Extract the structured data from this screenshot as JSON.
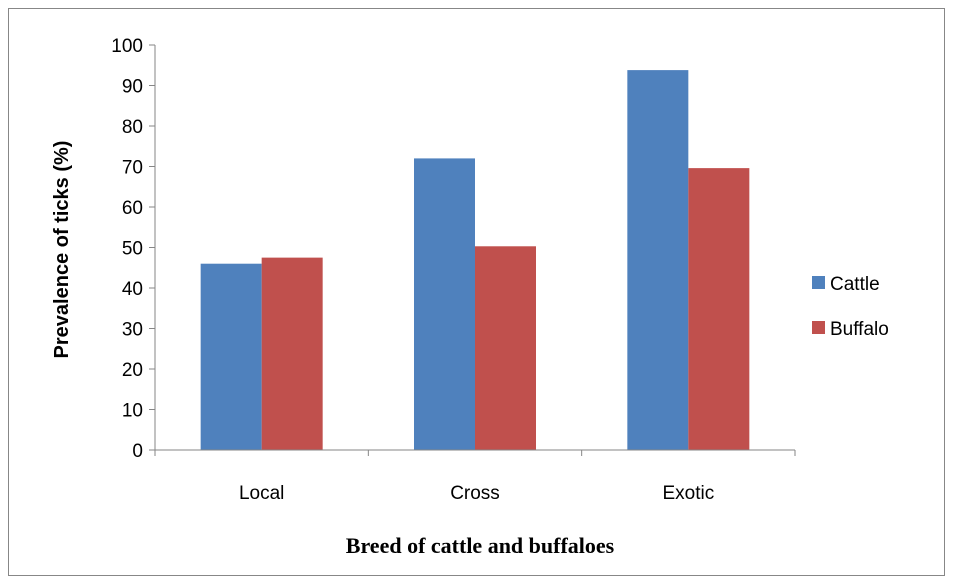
{
  "chart_data": {
    "type": "bar",
    "categories": [
      "Local",
      "Cross",
      "Exotic"
    ],
    "series": [
      {
        "name": "Cattle",
        "values": [
          46,
          72,
          93.8
        ],
        "color": "#4f81bd"
      },
      {
        "name": "Buffalo",
        "values": [
          47.5,
          50.3,
          69.6
        ],
        "color": "#c0504d"
      }
    ],
    "ylabel": "Prevalence of ticks (%)",
    "xlabel": "Breed of cattle and buffaloes",
    "ylim": [
      0,
      100
    ],
    "yticks": [
      0,
      10,
      20,
      30,
      40,
      50,
      60,
      70,
      80,
      90,
      100
    ],
    "grid": false,
    "legend_position": "right"
  }
}
